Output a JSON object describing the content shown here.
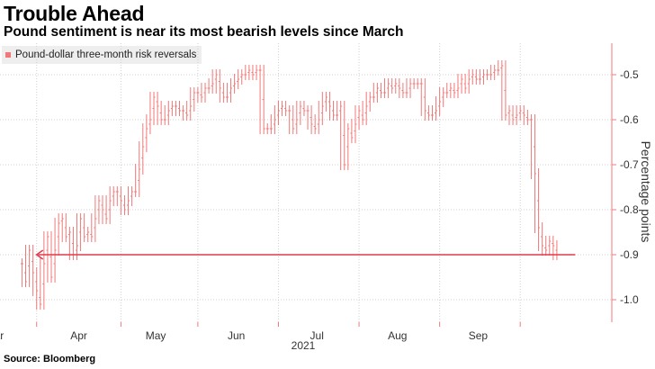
{
  "title": "Trouble Ahead",
  "subtitle": "Pound sentiment is near its most bearish levels since March",
  "source": "Source: Bloomberg",
  "colors": {
    "series": "#f07878",
    "arrow": "#e03a4f",
    "grid": "#d0d0d0",
    "axis": "#f07878"
  },
  "chart_data": {
    "type": "line",
    "legend": "Pound-dollar three-month risk reversals",
    "ylabel": "Percentage points",
    "xlabel": "",
    "year_label": "2021",
    "ylim": [
      -1.05,
      -0.43
    ],
    "y_ticks": [
      -0.5,
      -0.6,
      -0.7,
      -0.8,
      -0.9,
      -1.0
    ],
    "y_tick_labels": [
      "-0.5",
      "-0.6",
      "-0.7",
      "-0.8",
      "-0.9",
      "-1.0"
    ],
    "grid": true,
    "x_axis_position": "bottom",
    "y_axis_position": "right",
    "month_labels": [
      "Mar",
      "Apr",
      "May",
      "Jun",
      "Jul",
      "Aug",
      "Sep"
    ],
    "month_tick_positions": [
      0,
      23,
      44,
      66,
      88,
      110,
      132
    ],
    "x_range": [
      -10,
      157
    ],
    "annotation": {
      "type": "arrow",
      "y": -0.9,
      "x_from": 147,
      "x_to": 0,
      "direction": "left"
    },
    "series": [
      {
        "name": "Pound-dollar three-month risk reversals",
        "style": "high-low bars",
        "values": [
          -0.92,
          -0.96,
          -0.89,
          -0.94,
          -0.98,
          -1.01,
          -0.92,
          -0.86,
          -0.95,
          -0.89,
          -0.83,
          -0.82,
          -0.86,
          -0.85,
          -0.9,
          -0.88,
          -0.82,
          -0.86,
          -0.85,
          -0.86,
          -0.82,
          -0.78,
          -0.8,
          -0.82,
          -0.78,
          -0.76,
          -0.76,
          -0.78,
          -0.8,
          -0.78,
          -0.76,
          -0.76,
          -0.71,
          -0.66,
          -0.62,
          -0.6,
          -0.55,
          -0.57,
          -0.6,
          -0.6,
          -0.58,
          -0.57,
          -0.57,
          -0.58,
          -0.58,
          -0.59,
          -0.57,
          -0.54,
          -0.54,
          -0.55,
          -0.53,
          -0.53,
          -0.52,
          -0.5,
          -0.53,
          -0.55,
          -0.55,
          -0.53,
          -0.52,
          -0.51,
          -0.5,
          -0.5,
          -0.49,
          -0.5,
          -0.49,
          -0.49,
          -0.62,
          -0.62,
          -0.62,
          -0.6,
          -0.58,
          -0.57,
          -0.58,
          -0.58,
          -0.62,
          -0.6,
          -0.57,
          -0.58,
          -0.58,
          -0.61,
          -0.62,
          -0.6,
          -0.57,
          -0.55,
          -0.57,
          -0.59,
          -0.59,
          -0.57,
          -0.7,
          -0.62,
          -0.64,
          -0.61,
          -0.58,
          -0.6,
          -0.57,
          -0.55,
          -0.55,
          -0.53,
          -0.54,
          -0.54,
          -0.52,
          -0.53,
          -0.52,
          -0.53,
          -0.54,
          -0.54,
          -0.52,
          -0.52,
          -0.52,
          -0.52,
          -0.58,
          -0.59,
          -0.59,
          -0.58,
          -0.56,
          -0.54,
          -0.54,
          -0.53,
          -0.54,
          -0.53,
          -0.51,
          -0.53,
          -0.51,
          -0.5,
          -0.51,
          -0.51,
          -0.5,
          -0.5,
          -0.5,
          -0.49,
          -0.49,
          -0.48,
          -0.59,
          -0.58,
          -0.6,
          -0.59,
          -0.58,
          -0.59,
          -0.6,
          -0.6,
          -0.72,
          -0.84,
          -0.88,
          -0.89,
          -0.87,
          -0.88,
          -0.9
        ]
      }
    ]
  }
}
